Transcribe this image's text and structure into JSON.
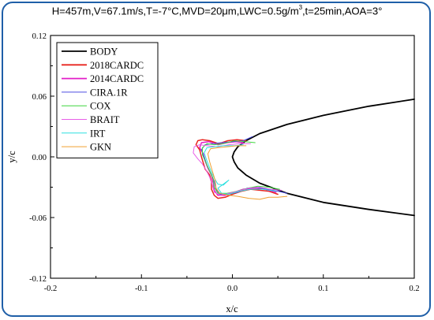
{
  "chart_data": {
    "type": "line",
    "title": {
      "H": "457m",
      "V": "67.1m/s",
      "T": "-7°C",
      "MVD": "20μm",
      "LWC_prefix": "0.5g/m",
      "LWC_exp": "3",
      "t": "25min",
      "AOA": "3°"
    },
    "xlabel": "x/c",
    "ylabel": "y/c",
    "xlim": [
      -0.2,
      0.2
    ],
    "ylim": [
      -0.12,
      0.12
    ],
    "xticks": [
      "-0.2",
      "-0.1",
      "0.0",
      "0.1",
      "0.2"
    ],
    "yticks": [
      "0.12",
      "0.06",
      "0.00",
      "-0.06",
      "-0.12"
    ],
    "legend_position": "top-left",
    "series": [
      {
        "name": "BODY",
        "color": "#000000",
        "points": [
          [
            0.2,
            0.057
          ],
          [
            0.15,
            0.05
          ],
          [
            0.1,
            0.041
          ],
          [
            0.06,
            0.032
          ],
          [
            0.03,
            0.023
          ],
          [
            0.015,
            0.016
          ],
          [
            0.006,
            0.01
          ],
          [
            0.002,
            0.005
          ],
          [
            0.0,
            0.0
          ],
          [
            0.002,
            -0.005
          ],
          [
            0.006,
            -0.011
          ],
          [
            0.015,
            -0.018
          ],
          [
            0.03,
            -0.026
          ],
          [
            0.06,
            -0.036
          ],
          [
            0.1,
            -0.045
          ],
          [
            0.15,
            -0.052
          ],
          [
            0.2,
            -0.058
          ]
        ]
      },
      {
        "name": "2018CARDC",
        "color": "#e8251f",
        "points": [
          [
            0.015,
            0.016
          ],
          [
            0.005,
            0.017
          ],
          [
            -0.005,
            0.016
          ],
          [
            -0.015,
            0.013
          ],
          [
            -0.025,
            0.016
          ],
          [
            -0.033,
            0.017
          ],
          [
            -0.038,
            0.016
          ],
          [
            -0.04,
            0.012
          ],
          [
            -0.036,
            0.007
          ],
          [
            -0.034,
            0.0
          ],
          [
            -0.032,
            -0.006
          ],
          [
            -0.03,
            -0.012
          ],
          [
            -0.025,
            -0.018
          ],
          [
            -0.023,
            -0.025
          ],
          [
            -0.023,
            -0.032
          ],
          [
            -0.02,
            -0.038
          ],
          [
            -0.016,
            -0.041
          ],
          [
            -0.008,
            -0.04
          ],
          [
            0.0,
            -0.037
          ],
          [
            0.01,
            -0.034
          ],
          [
            0.02,
            -0.032
          ],
          [
            0.03,
            -0.033
          ],
          [
            0.04,
            -0.034
          ],
          [
            0.05,
            -0.037
          ]
        ]
      },
      {
        "name": "2014CARDC",
        "color": "#e31ec8",
        "points": [
          [
            0.012,
            0.014
          ],
          [
            0.004,
            0.015
          ],
          [
            -0.006,
            0.014
          ],
          [
            -0.016,
            0.012
          ],
          [
            -0.026,
            0.015
          ],
          [
            -0.034,
            0.014
          ],
          [
            -0.036,
            0.009
          ],
          [
            -0.032,
            0.003
          ],
          [
            -0.03,
            -0.004
          ],
          [
            -0.027,
            -0.011
          ],
          [
            -0.023,
            -0.018
          ],
          [
            -0.021,
            -0.026
          ],
          [
            -0.02,
            -0.033
          ],
          [
            -0.016,
            -0.038
          ],
          [
            -0.008,
            -0.038
          ],
          [
            0.002,
            -0.035
          ],
          [
            0.012,
            -0.032
          ],
          [
            0.024,
            -0.031
          ],
          [
            0.036,
            -0.032
          ],
          [
            0.048,
            -0.035
          ]
        ]
      },
      {
        "name": "CIRA.1R",
        "color": "#4d4de0",
        "points": [
          [
            0.022,
            0.02
          ],
          [
            0.012,
            0.016
          ],
          [
            0.0,
            0.015
          ],
          [
            -0.012,
            0.014
          ],
          [
            -0.022,
            0.013
          ],
          [
            -0.03,
            0.012
          ],
          [
            -0.034,
            0.007
          ],
          [
            -0.031,
            0.0
          ],
          [
            -0.028,
            -0.008
          ],
          [
            -0.024,
            -0.016
          ],
          [
            -0.02,
            -0.024
          ],
          [
            -0.018,
            -0.032
          ],
          [
            -0.014,
            -0.037
          ],
          [
            -0.005,
            -0.037
          ],
          [
            0.006,
            -0.035
          ],
          [
            0.016,
            -0.031
          ],
          [
            0.026,
            -0.03
          ],
          [
            0.038,
            -0.032
          ],
          [
            0.05,
            -0.034
          ],
          [
            0.06,
            -0.036
          ]
        ]
      },
      {
        "name": "COX",
        "color": "#3fd63f",
        "points": [
          [
            0.025,
            0.014
          ],
          [
            0.014,
            0.015
          ],
          [
            0.002,
            0.016
          ],
          [
            -0.01,
            0.013
          ],
          [
            -0.02,
            0.012
          ],
          [
            -0.028,
            0.013
          ],
          [
            -0.033,
            0.009
          ],
          [
            -0.033,
            0.002
          ],
          [
            -0.029,
            -0.006
          ],
          [
            -0.025,
            -0.014
          ],
          [
            -0.021,
            -0.022
          ],
          [
            -0.02,
            -0.03
          ],
          [
            -0.016,
            -0.036
          ],
          [
            -0.006,
            -0.036
          ],
          [
            0.005,
            -0.034
          ],
          [
            0.017,
            -0.031
          ],
          [
            0.028,
            -0.029
          ],
          [
            0.04,
            -0.03
          ],
          [
            0.052,
            -0.032
          ]
        ]
      },
      {
        "name": "BRAIT",
        "color": "#e85fe8",
        "points": [
          [
            0.02,
            0.013
          ],
          [
            0.008,
            0.013
          ],
          [
            -0.004,
            0.012
          ],
          [
            -0.016,
            0.01
          ],
          [
            -0.028,
            0.011
          ],
          [
            -0.036,
            0.012
          ],
          [
            -0.042,
            0.01
          ],
          [
            -0.043,
            0.004
          ],
          [
            -0.038,
            -0.002
          ],
          [
            -0.033,
            -0.007
          ],
          [
            -0.029,
            -0.013
          ],
          [
            -0.025,
            -0.02
          ],
          [
            -0.022,
            -0.028
          ],
          [
            -0.02,
            -0.035
          ],
          [
            -0.013,
            -0.038
          ],
          [
            -0.004,
            -0.036
          ],
          [
            0.006,
            -0.034
          ],
          [
            0.018,
            -0.031
          ],
          [
            0.03,
            -0.03
          ],
          [
            0.042,
            -0.032
          ],
          [
            0.054,
            -0.033
          ]
        ]
      },
      {
        "name": "IRT",
        "color": "#2ee0e0",
        "points": [
          [
            0.012,
            0.012
          ],
          [
            0.002,
            0.011
          ],
          [
            -0.01,
            0.011
          ],
          [
            -0.02,
            0.01
          ],
          [
            -0.028,
            0.009
          ],
          [
            -0.031,
            0.004
          ],
          [
            -0.028,
            -0.004
          ],
          [
            -0.024,
            -0.013
          ],
          [
            -0.02,
            -0.021
          ],
          [
            -0.016,
            -0.027
          ],
          [
            -0.01,
            -0.028
          ],
          [
            -0.004,
            -0.023
          ],
          [
            -0.016,
            -0.031
          ],
          [
            -0.012,
            -0.036
          ],
          [
            -0.004,
            -0.037
          ],
          [
            0.008,
            -0.034
          ],
          [
            0.02,
            -0.032
          ],
          [
            0.034,
            -0.032
          ],
          [
            0.048,
            -0.034
          ]
        ]
      },
      {
        "name": "GKN",
        "color": "#f0a030",
        "points": [
          [
            0.015,
            0.011
          ],
          [
            0.005,
            0.011
          ],
          [
            -0.006,
            0.01
          ],
          [
            -0.016,
            0.009
          ],
          [
            -0.024,
            0.008
          ],
          [
            -0.027,
            0.003
          ],
          [
            -0.025,
            -0.005
          ],
          [
            -0.022,
            -0.014
          ],
          [
            -0.019,
            -0.023
          ],
          [
            -0.018,
            -0.031
          ],
          [
            -0.014,
            -0.036
          ],
          [
            -0.004,
            -0.038
          ],
          [
            0.006,
            -0.039
          ],
          [
            0.018,
            -0.041
          ],
          [
            0.03,
            -0.042
          ],
          [
            0.04,
            -0.04
          ],
          [
            0.05,
            -0.04
          ],
          [
            0.06,
            -0.039
          ]
        ]
      }
    ]
  }
}
